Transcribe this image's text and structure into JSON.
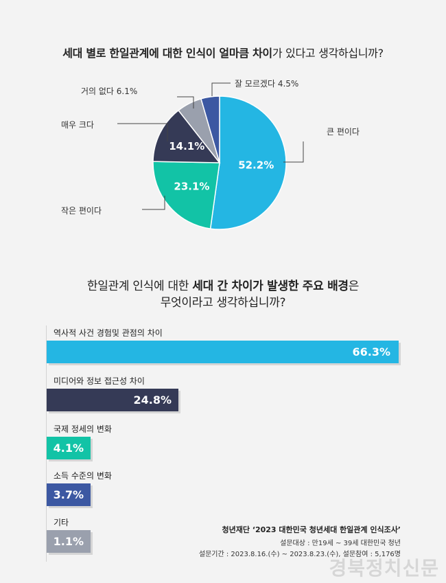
{
  "pie_title": {
    "bold1": "세대 별로 한일관계에 대한 인식이 얼마큼 차이",
    "normal": "가 있다고 생각하십니까?"
  },
  "bar_title": {
    "line1_pre": "한일관계 인식에 대한 ",
    "line1_bold": "세대 간 차이가 발생한 주요 배경",
    "line1_post": "은",
    "line2": "무엇이라고 생각하십니까?"
  },
  "chart_data": [
    {
      "type": "pie",
      "slices": [
        {
          "label": "큰 편이다",
          "value": 52.2,
          "display": "52.2%",
          "color": "#24b6e3"
        },
        {
          "label": "작은 편이다",
          "value": 23.1,
          "display": "23.1%",
          "color": "#12c3a6"
        },
        {
          "label": "매우 크다",
          "value": 14.1,
          "display": "14.1%",
          "color": "#353a56"
        },
        {
          "label": "거의 없다",
          "value": 6.1,
          "display": "6.1%",
          "color": "#9aa0ad"
        },
        {
          "label": "잘 모르겠다",
          "value": 4.5,
          "display": "4.5%",
          "color": "#3c58a2"
        }
      ],
      "outside_labels": {
        "kr": "큰 편이다",
        "small": "작은 편이다",
        "very": "매우 크다",
        "none": "거의 없다  6.1%",
        "dk": "잘 모르겠다  4.5%"
      }
    },
    {
      "type": "bar",
      "orientation": "horizontal",
      "categories": [
        "역사적 사건 경험및 관점의 차이",
        "미디어와 정보 접근성 차이",
        "국제 정세의 변화",
        "소득 수준의 변화",
        "기타"
      ],
      "values": [
        66.3,
        24.8,
        4.1,
        3.7,
        1.1
      ],
      "displays": [
        "66.3%",
        "24.8%",
        "4.1%",
        "3.7%",
        "1.1%"
      ],
      "colors": [
        "#24b6e3",
        "#353a56",
        "#12c3a6",
        "#3c58a2",
        "#9aa0ad"
      ]
    }
  ],
  "source": {
    "title": "청년재단 ‘2023 대한민국 청년세대 한일관계 인식조사’",
    "line1": "설문대상 : 만19세 ~ 39세 대한민국 청년",
    "line2": "설문기간 : 2023.8.16.(수) ~ 2023.8.23.(수), 설문참여 : 5,176명"
  },
  "watermark": "경북정치신문"
}
